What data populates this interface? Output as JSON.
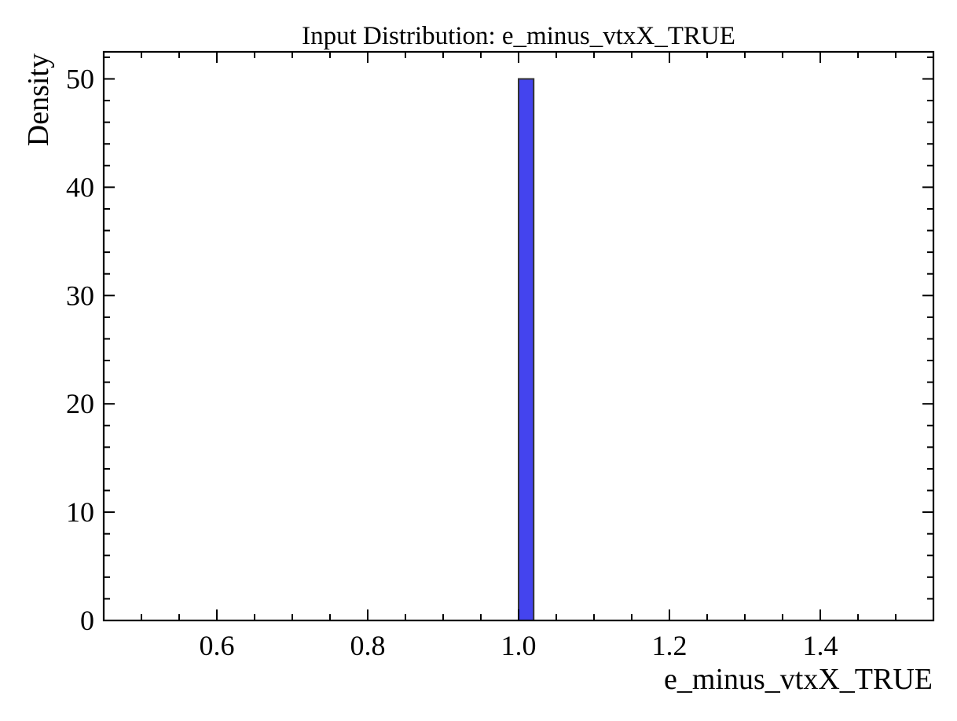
{
  "chart_data": {
    "type": "bar",
    "title": "Input Distribution: e_minus_vtxX_TRUE",
    "xlabel": "e_minus_vtxX_TRUE",
    "ylabel": "Density",
    "xlim": [
      0.45,
      1.55
    ],
    "ylim": [
      0,
      52.5
    ],
    "x_ticks": [
      {
        "value": 0.6,
        "label": "0.6"
      },
      {
        "value": 0.8,
        "label": "0.8"
      },
      {
        "value": 1.0,
        "label": "1.0"
      },
      {
        "value": 1.2,
        "label": "1.2"
      },
      {
        "value": 1.4,
        "label": "1.4"
      }
    ],
    "x_minor_step": 0.05,
    "y_ticks": [
      {
        "value": 0,
        "label": "0"
      },
      {
        "value": 10,
        "label": "10"
      },
      {
        "value": 20,
        "label": "20"
      },
      {
        "value": 30,
        "label": "30"
      },
      {
        "value": 40,
        "label": "40"
      },
      {
        "value": 50,
        "label": "50"
      }
    ],
    "y_minor_step": 2,
    "bins": [
      {
        "x0": 1.0,
        "x1": 1.02,
        "value": 50
      }
    ],
    "bar_color": "#4444ee",
    "bar_edge_color": "#333333",
    "grid": false
  }
}
